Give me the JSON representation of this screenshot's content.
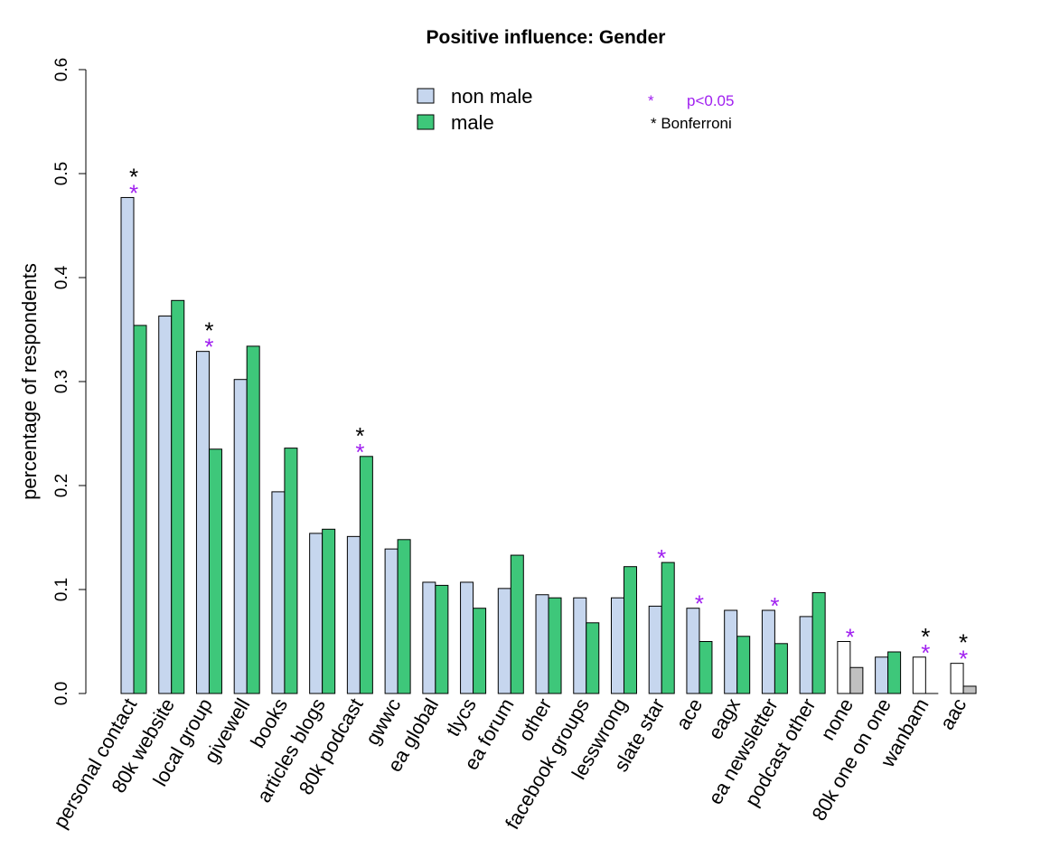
{
  "chart_data": {
    "type": "bar",
    "title": "Positive influence: Gender",
    "xlabel": "",
    "ylabel": "percentage of respondents",
    "ylim": [
      0,
      0.6
    ],
    "yticks": [
      "0.0",
      "0.1",
      "0.2",
      "0.3",
      "0.4",
      "0.5",
      "0.6"
    ],
    "categories": [
      "personal contact",
      "80k website",
      "local group",
      "givewell",
      "books",
      "articles blogs",
      "80k podcast",
      "gwwc",
      "ea global",
      "tlycs",
      "ea forum",
      "other",
      "facebook groups",
      "lesswrong",
      "slate star",
      "ace",
      "eagx",
      "ea newsletter",
      "podcast other",
      "none",
      "80k one on one",
      "wanbam",
      "aac"
    ],
    "series": [
      {
        "name": "non male",
        "color": "#c6d6ee",
        "values": [
          0.477,
          0.363,
          0.329,
          0.302,
          0.194,
          0.154,
          0.151,
          0.139,
          0.107,
          0.107,
          0.101,
          0.095,
          0.092,
          0.092,
          0.084,
          0.082,
          0.08,
          0.08,
          0.074,
          0.05,
          0.035,
          0.035,
          0.029
        ]
      },
      {
        "name": "male",
        "color": "#3ec77a",
        "values": [
          0.354,
          0.378,
          0.235,
          0.334,
          0.236,
          0.158,
          0.228,
          0.148,
          0.104,
          0.082,
          0.133,
          0.092,
          0.068,
          0.122,
          0.126,
          0.05,
          0.055,
          0.048,
          0.097,
          0.025,
          0.04,
          0.0,
          0.007
        ]
      }
    ],
    "unfilled_categories": [
      "none",
      "wanbam",
      "aac"
    ],
    "unfilled_colors": {
      "non_male": "#ffffff",
      "male": "#c0c0c0"
    },
    "sig_p05": [
      "personal contact",
      "local group",
      "80k podcast",
      "slate star",
      "ace",
      "ea newsletter",
      "none",
      "wanbam",
      "aac"
    ],
    "sig_bonferroni": [
      "personal contact",
      "local group",
      "80k podcast",
      "wanbam",
      "aac"
    ],
    "sig_color": "#a020f0",
    "bonferroni_color": "#000000",
    "legend": {
      "placement": "top-center"
    },
    "sig_legend": {
      "marker": "*",
      "p05_label": "p<0.05",
      "bonferroni_label": "* Bonferroni"
    },
    "grid": false
  }
}
